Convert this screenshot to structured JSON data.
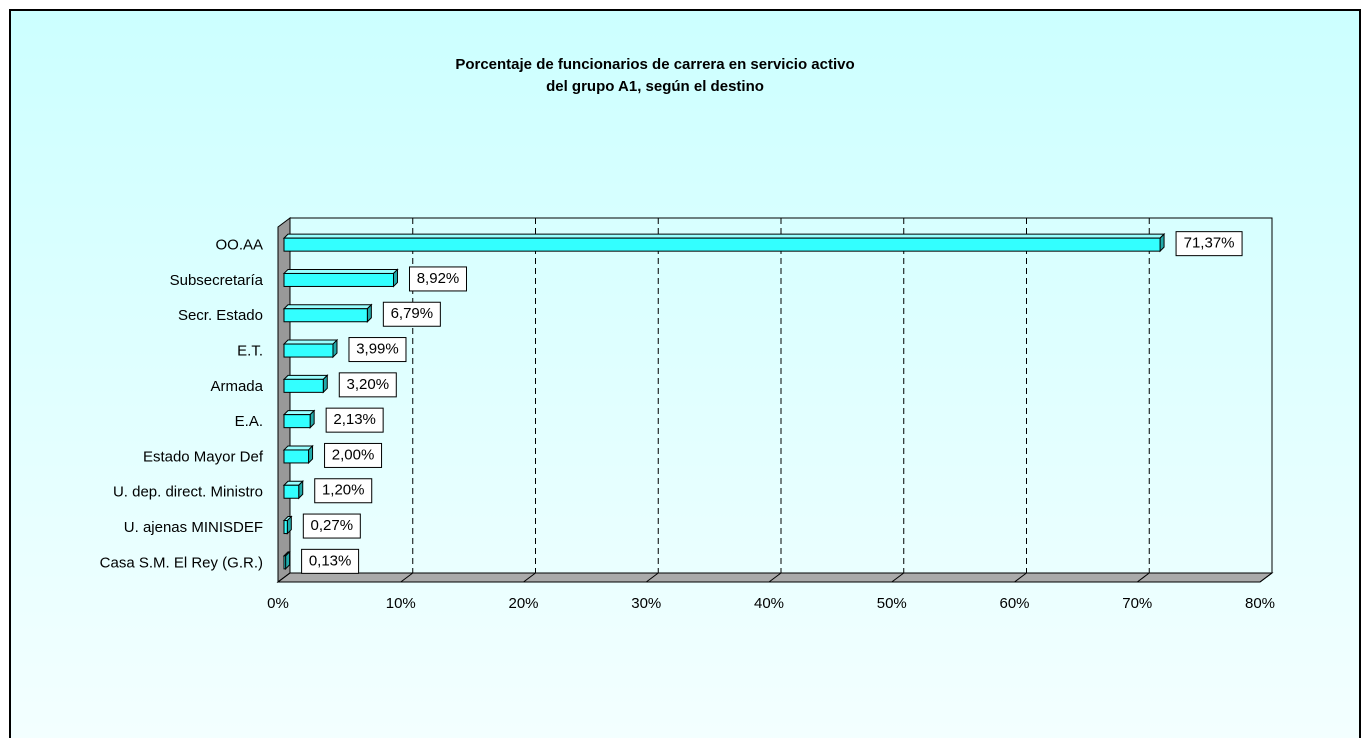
{
  "chart_data": {
    "type": "bar",
    "orientation": "horizontal",
    "title": [
      "Porcentaje de funcionarios de carrera en servicio activo",
      "del grupo A1, según el destino"
    ],
    "categories": [
      "OO.AA",
      "Subsecretaría",
      "Secr. Estado",
      "E.T.",
      "Armada",
      "E.A.",
      "Estado Mayor Def",
      "U. dep. direct. Ministro",
      "U. ajenas MINISDEF",
      "Casa S.M. El Rey (G.R.)"
    ],
    "values": [
      71.37,
      8.92,
      6.79,
      3.99,
      3.2,
      2.13,
      2.0,
      1.2,
      0.27,
      0.13
    ],
    "value_labels": [
      "71,37%",
      "8,92%",
      "6,79%",
      "3,99%",
      "3,20%",
      "2,13%",
      "2,00%",
      "1,20%",
      "0,27%",
      "0,13%"
    ],
    "color": "#33ffff",
    "xlim": [
      0,
      80
    ],
    "xticks": [
      {
        "value": 0,
        "label": "0%"
      },
      {
        "value": 10,
        "label": "10%"
      },
      {
        "value": 20,
        "label": "20%"
      },
      {
        "value": 30,
        "label": "30%"
      },
      {
        "value": 40,
        "label": "40%"
      },
      {
        "value": 50,
        "label": "50%"
      },
      {
        "value": 60,
        "label": "60%"
      },
      {
        "value": 70,
        "label": "70%"
      },
      {
        "value": 80,
        "label": "80%"
      }
    ],
    "grid": true
  }
}
